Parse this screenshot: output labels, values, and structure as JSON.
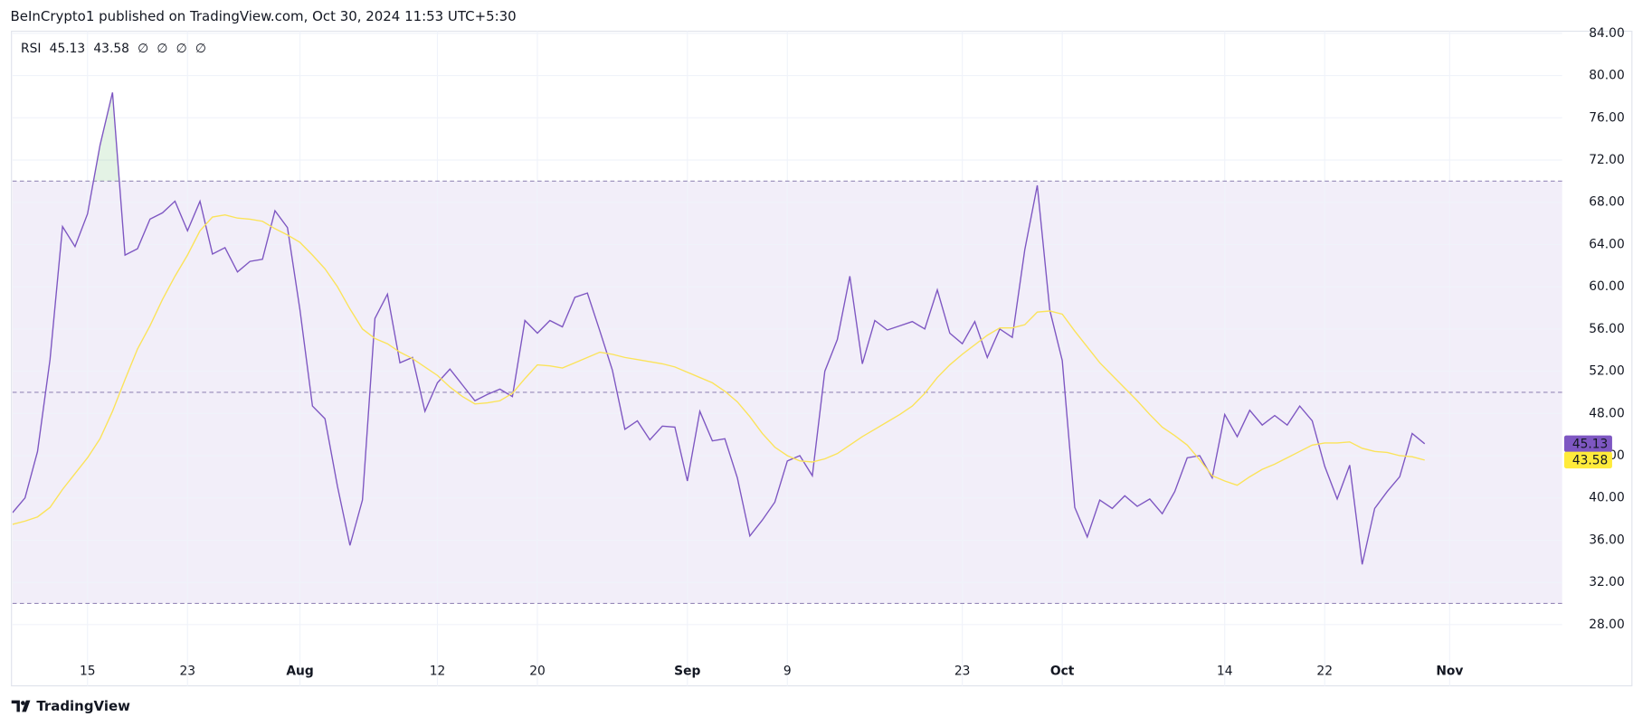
{
  "header": "BeInCrypto1 published on TradingView.com, Oct 30, 2024 11:53 UTC+5:30",
  "footer": "TradingView",
  "chart_data": {
    "type": "line",
    "legend_extras": [
      "∅",
      "∅",
      "∅",
      "∅"
    ],
    "x": [
      "Jul 9",
      "Jul 10",
      "Jul 11",
      "Jul 12",
      "Jul 13",
      "Jul 14",
      "Jul 15",
      "Jul 16",
      "Jul 17",
      "Jul 18",
      "Jul 19",
      "Jul 20",
      "Jul 21",
      "Jul 22",
      "Jul 23",
      "Jul 24",
      "Jul 25",
      "Jul 26",
      "Jul 27",
      "Jul 28",
      "Jul 29",
      "Jul 30",
      "Jul 31",
      "Aug 1",
      "Aug 2",
      "Aug 3",
      "Aug 4",
      "Aug 5",
      "Aug 6",
      "Aug 7",
      "Aug 8",
      "Aug 9",
      "Aug 10",
      "Aug 11",
      "Aug 12",
      "Aug 13",
      "Aug 14",
      "Aug 15",
      "Aug 16",
      "Aug 17",
      "Aug 18",
      "Aug 19",
      "Aug 20",
      "Aug 21",
      "Aug 22",
      "Aug 23",
      "Aug 24",
      "Aug 25",
      "Aug 26",
      "Aug 27",
      "Aug 28",
      "Aug 29",
      "Aug 30",
      "Aug 31",
      "Sep 1",
      "Sep 2",
      "Sep 3",
      "Sep 4",
      "Sep 5",
      "Sep 6",
      "Sep 7",
      "Sep 8",
      "Sep 9",
      "Sep 10",
      "Sep 11",
      "Sep 12",
      "Sep 13",
      "Sep 14",
      "Sep 15",
      "Sep 16",
      "Sep 17",
      "Sep 18",
      "Sep 19",
      "Sep 20",
      "Sep 21",
      "Sep 22",
      "Sep 23",
      "Sep 24",
      "Sep 25",
      "Sep 26",
      "Sep 27",
      "Sep 28",
      "Sep 29",
      "Sep 30",
      "Oct 1",
      "Oct 2",
      "Oct 3",
      "Oct 4",
      "Oct 5",
      "Oct 6",
      "Oct 7",
      "Oct 8",
      "Oct 9",
      "Oct 10",
      "Oct 11",
      "Oct 12",
      "Oct 13",
      "Oct 14",
      "Oct 15",
      "Oct 16",
      "Oct 17",
      "Oct 18",
      "Oct 19",
      "Oct 20",
      "Oct 21",
      "Oct 22",
      "Oct 23",
      "Oct 24",
      "Oct 25",
      "Oct 26",
      "Oct 27",
      "Oct 28",
      "Oct 29",
      "Oct 30"
    ],
    "series": [
      {
        "name": "RSI",
        "color": "#7e57c2",
        "badge_text_color": "#ffffff",
        "values": [
          38.6,
          40.0,
          44.4,
          53.1,
          65.7,
          63.8,
          66.9,
          73.4,
          78.4,
          63.0,
          63.6,
          66.4,
          67.0,
          68.1,
          65.3,
          68.1,
          63.1,
          63.7,
          61.4,
          62.4,
          62.6,
          67.2,
          65.6,
          57.8,
          48.7,
          47.5,
          41.1,
          35.5,
          39.8,
          57.0,
          59.3,
          52.8,
          53.3,
          48.2,
          50.9,
          52.2,
          50.7,
          49.2,
          49.8,
          50.3,
          49.6,
          56.8,
          55.6,
          56.8,
          56.2,
          59.0,
          59.4,
          55.8,
          52.1,
          46.5,
          47.3,
          45.5,
          46.8,
          46.7,
          41.6,
          48.2,
          45.4,
          45.6,
          41.9,
          36.4,
          37.9,
          39.6,
          43.5,
          44.0,
          42.1,
          52.0,
          55.0,
          61.0,
          52.7,
          56.8,
          55.9,
          56.3,
          56.7,
          56.0,
          59.7,
          55.6,
          54.6,
          56.7,
          53.3,
          56.0,
          55.2,
          63.5,
          69.6,
          57.8,
          53.0,
          39.1,
          36.3,
          39.8,
          39.0,
          40.2,
          39.2,
          39.9,
          38.5,
          40.6,
          43.8,
          44.0,
          41.9,
          47.9,
          45.8,
          48.3,
          46.9,
          47.8,
          46.9,
          48.7,
          47.3,
          43.0,
          39.9,
          43.1,
          33.7,
          39.0,
          40.6,
          42.0,
          46.1,
          45.13
        ]
      },
      {
        "color": "#fbe35a",
        "badge_color": "#ffeb3b",
        "badge_text_color": "#131722",
        "values": [
          37.5,
          37.8,
          38.2,
          39.1,
          40.8,
          42.3,
          43.8,
          45.6,
          48.2,
          51.2,
          54.1,
          56.3,
          58.8,
          61.0,
          63.0,
          65.3,
          66.6,
          66.8,
          66.5,
          66.4,
          66.2,
          65.5,
          64.9,
          64.2,
          63.0,
          61.7,
          60.0,
          57.9,
          56.0,
          55.1,
          54.6,
          53.8,
          53.2,
          52.4,
          51.6,
          50.5,
          49.6,
          48.9,
          49.0,
          49.2,
          49.9,
          51.3,
          52.6,
          52.5,
          52.3,
          52.8,
          53.3,
          53.8,
          53.6,
          53.3,
          53.1,
          52.9,
          52.7,
          52.4,
          51.9,
          51.4,
          50.9,
          50.1,
          49.1,
          47.7,
          46.1,
          44.8,
          44.0,
          43.5,
          43.4,
          43.7,
          44.2,
          45.0,
          45.8,
          46.5,
          47.2,
          47.9,
          48.7,
          49.9,
          51.4,
          52.6,
          53.6,
          54.5,
          55.4,
          56.1,
          56.1,
          56.4,
          57.6,
          57.7,
          57.4,
          55.8,
          54.3,
          52.8,
          51.6,
          50.4,
          49.2,
          47.9,
          46.7,
          45.9,
          45.0,
          43.6,
          42.1,
          41.6,
          41.2,
          42.0,
          42.7,
          43.2,
          43.8,
          44.4,
          45.0,
          45.2,
          45.2,
          45.3,
          44.7,
          44.4,
          44.3,
          44.0,
          43.9,
          43.58
        ]
      }
    ],
    "levels": [
      70,
      50,
      30
    ],
    "band_color": "#7e57c2",
    "overbought_color": "#4caf50",
    "xlim": [
      "Jul 9",
      "Nov 10"
    ],
    "xticks": [
      {
        "value": "Jul 15",
        "label": "15"
      },
      {
        "value": "Jul 23",
        "label": "23"
      },
      {
        "value": "Aug 1",
        "label": "Aug"
      },
      {
        "value": "Aug 12",
        "label": "12"
      },
      {
        "value": "Aug 20",
        "label": "20"
      },
      {
        "value": "Sep 1",
        "label": "Sep"
      },
      {
        "value": "Sep 9",
        "label": "9"
      },
      {
        "value": "Sep 23",
        "label": "23"
      },
      {
        "value": "Oct 1",
        "label": "Oct"
      },
      {
        "value": "Oct 14",
        "label": "14"
      },
      {
        "value": "Oct 22",
        "label": "22"
      },
      {
        "value": "Nov 1",
        "label": "Nov"
      }
    ],
    "ylim": [
      22.2,
      84.2
    ],
    "yticks": [
      {
        "value": 28,
        "label": "28.00"
      },
      {
        "value": 32,
        "label": "32.00"
      },
      {
        "value": 36,
        "label": "36.00"
      },
      {
        "value": 40,
        "label": "40.00"
      },
      {
        "value": 44,
        "label": "44.00"
      },
      {
        "value": 48,
        "label": "48.00"
      },
      {
        "value": 52,
        "label": "52.00"
      },
      {
        "value": 56,
        "label": "56.00"
      },
      {
        "value": 60,
        "label": "60.00"
      },
      {
        "value": 64,
        "label": "64.00"
      },
      {
        "value": 68,
        "label": "68.00"
      },
      {
        "value": 72,
        "label": "72.00"
      },
      {
        "value": 76,
        "label": "76.00"
      },
      {
        "value": 80,
        "label": "80.00"
      },
      {
        "value": 84,
        "label": "84.00"
      }
    ],
    "grid": true
  }
}
